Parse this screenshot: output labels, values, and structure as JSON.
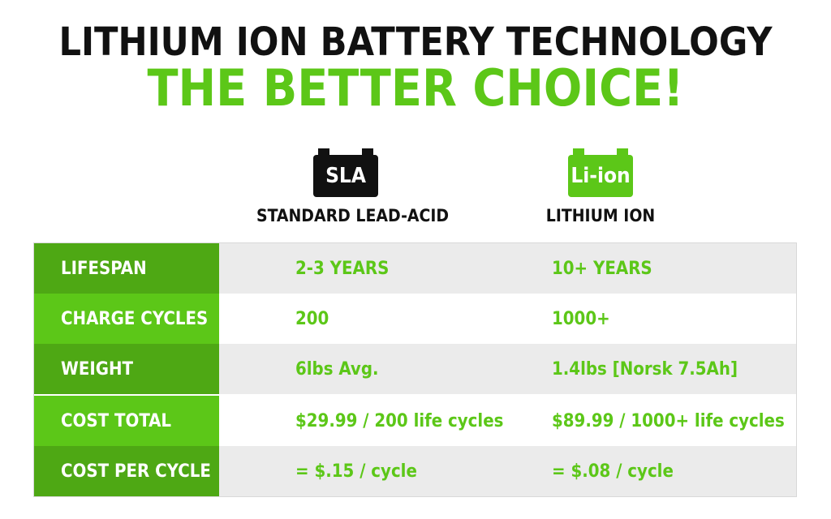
{
  "header": {
    "title": "LITHIUM ION BATTERY TECHNOLOGY",
    "subtitle": "THE BETTER CHOICE!"
  },
  "columns": {
    "sla": {
      "badge": "SLA",
      "label": "STANDARD LEAD-ACID"
    },
    "li": {
      "badge": "Li-ion",
      "label": "LITHIUM ION"
    }
  },
  "rows": [
    {
      "label": "LIFESPAN",
      "sla": "2-3 YEARS",
      "li": "10+ YEARS"
    },
    {
      "label": "CHARGE CYCLES",
      "sla": "200",
      "li": "1000+"
    },
    {
      "label": "WEIGHT",
      "sla": "6lbs Avg.",
      "li": "1.4lbs [Norsk 7.5Ah]"
    },
    {
      "label": "COST TOTAL",
      "sla": "$29.99 / 200 life cycles",
      "li": "$89.99 / 1000+ life cycles"
    },
    {
      "label": "COST PER CYCLE",
      "sla": "= $.15 / cycle",
      "li": "= $.08 / cycle"
    }
  ],
  "colors": {
    "accent_green": "#5cc718",
    "dark_green": "#4ea814",
    "text_dark": "#111111",
    "row_shade": "#ebebeb"
  },
  "icons": {
    "sla": "battery-icon",
    "li": "battery-icon"
  }
}
